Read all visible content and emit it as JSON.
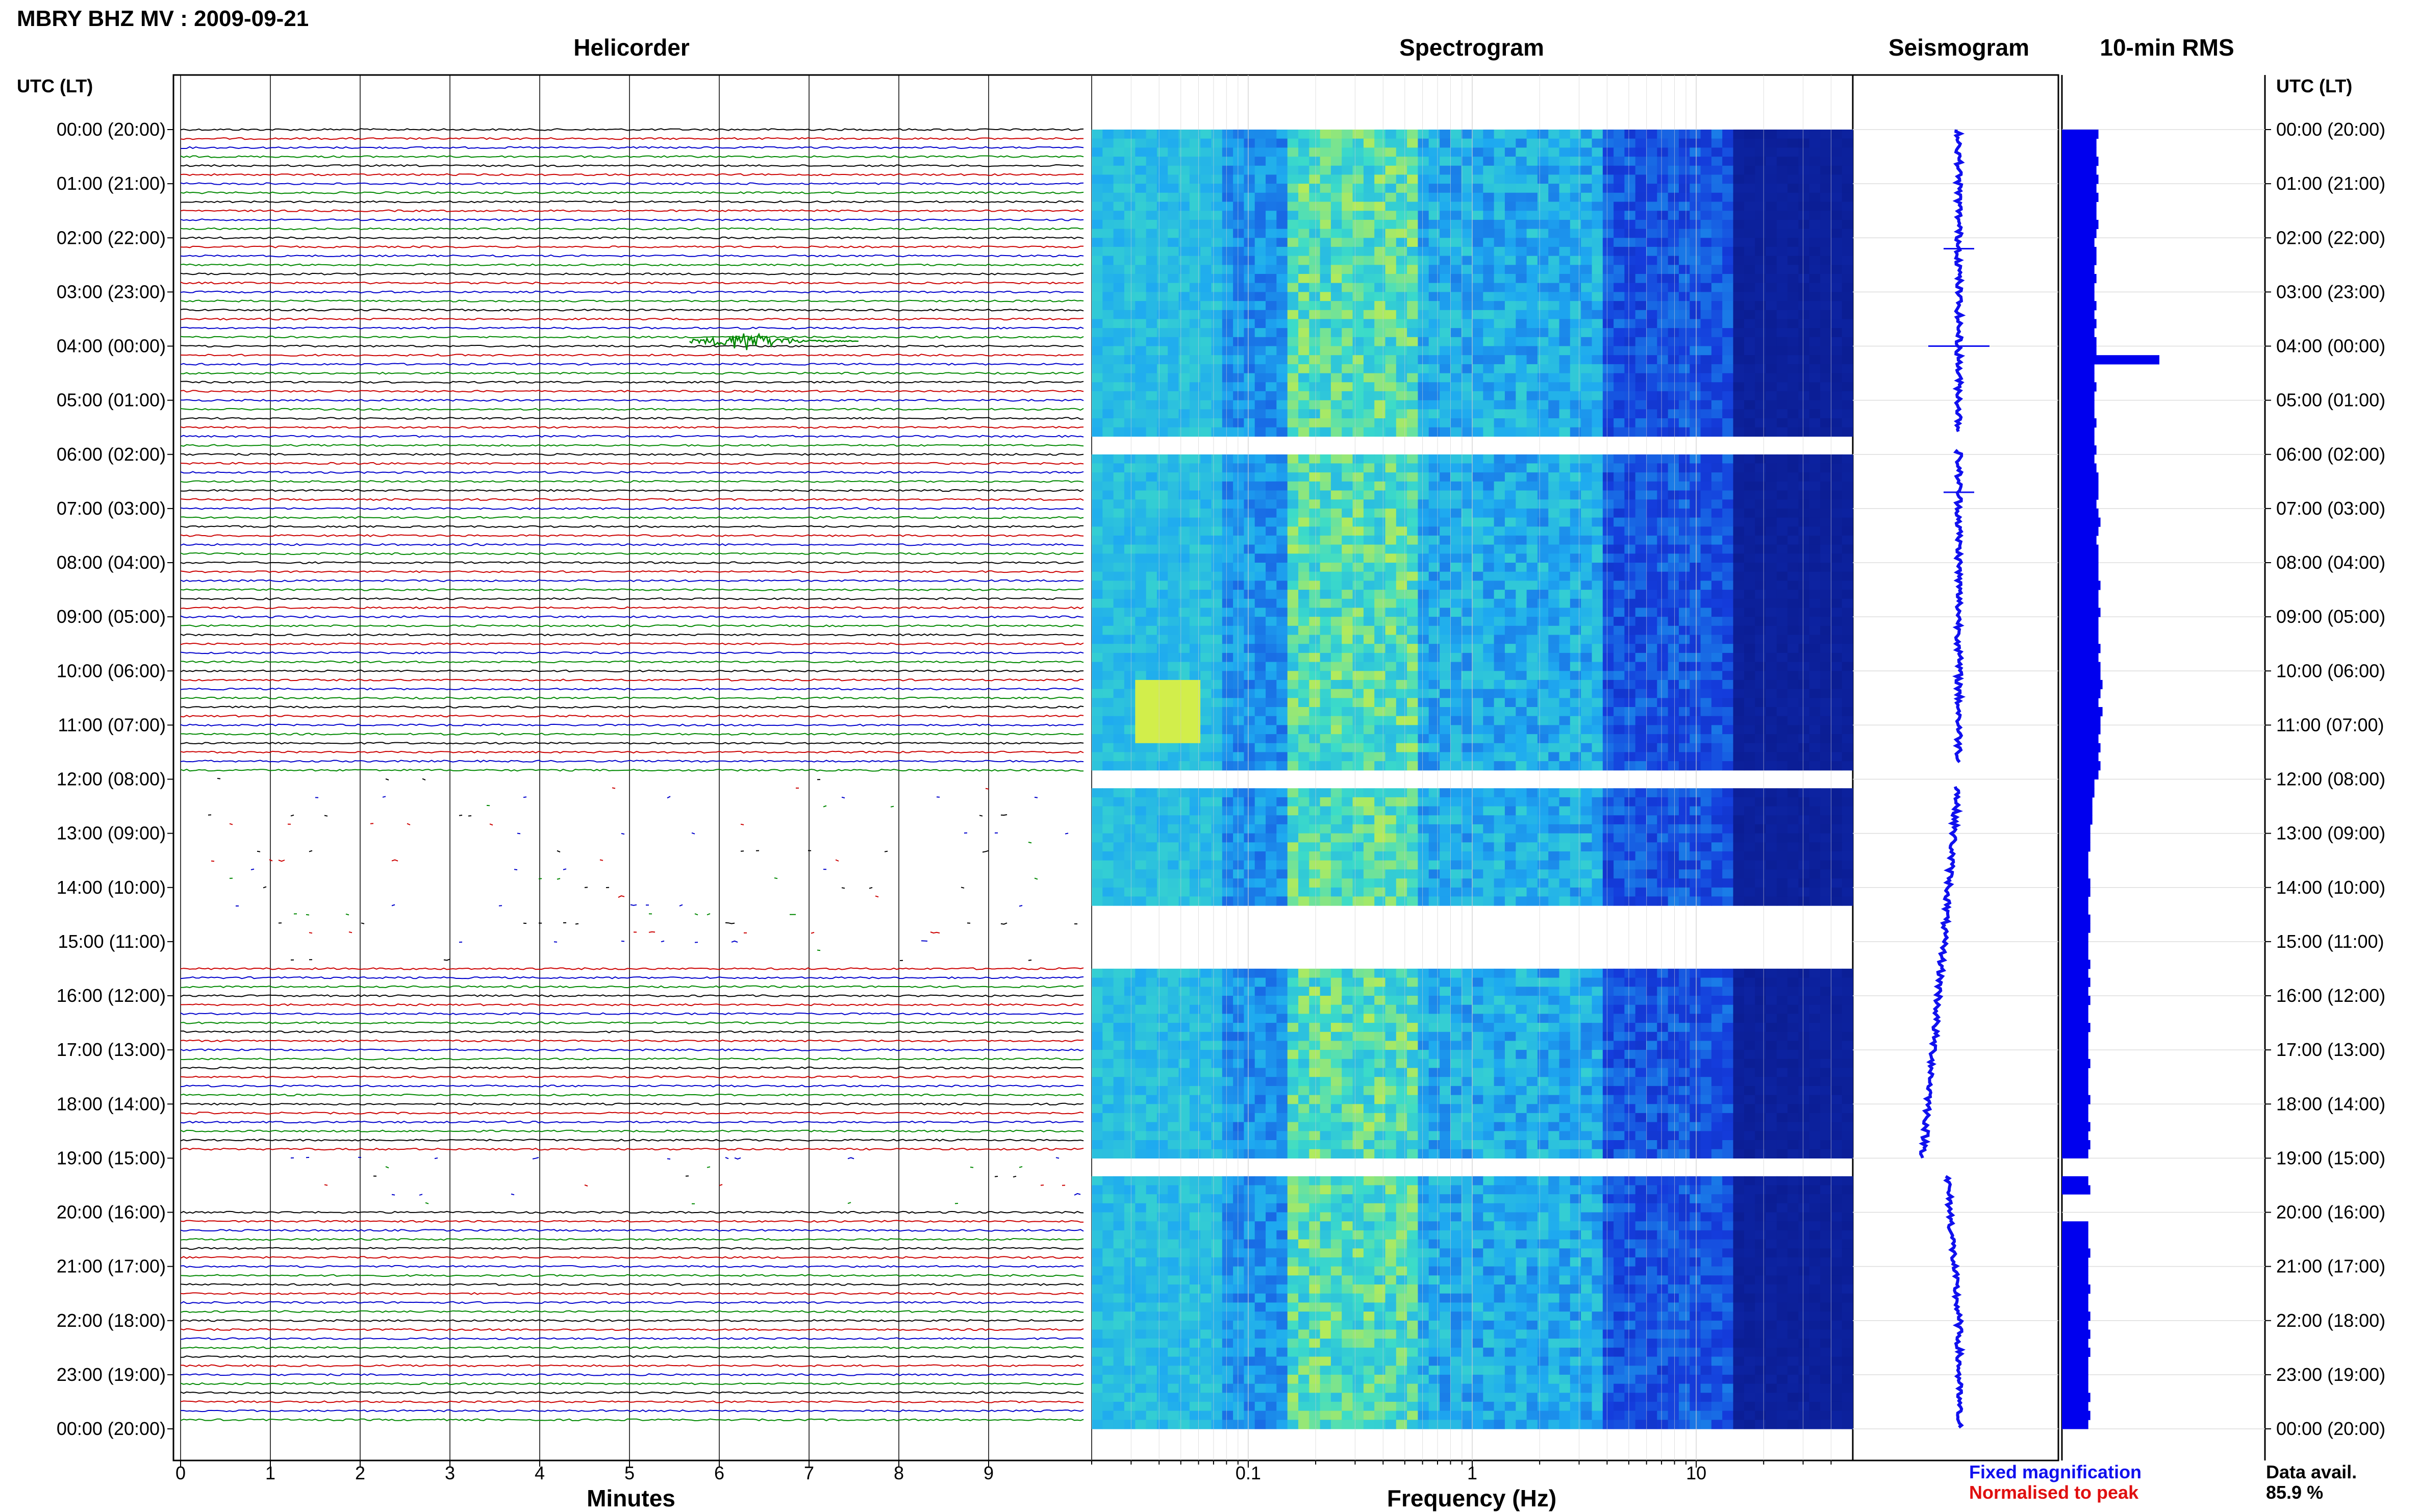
{
  "station_title": "MBRY BHZ MV : 2009-09-21",
  "panels": {
    "helicorder": "Helicorder",
    "spectrogram": "Spectrogram",
    "seismogram": "Seismogram",
    "rms": "10-min RMS"
  },
  "utc_header": "UTC (LT)",
  "x_labels": {
    "minutes": "Minutes",
    "frequency": "Frequency (Hz)"
  },
  "legend": {
    "fixed": "Fixed magnification",
    "normalised": "Normalised to peak"
  },
  "availability": {
    "label": "Data avail.",
    "value": "85.9 %"
  },
  "colors": {
    "trace_cycle": [
      "#000000",
      "#cc0000",
      "#0000cc",
      "#008800"
    ],
    "seismogram": "#1010ee",
    "rms": "#0000ee",
    "spectrogram_low": "#0a1a8c",
    "spectrogram_high": "#f0f040"
  },
  "chart_data": [
    {
      "type": "helicorder",
      "title": "Helicorder",
      "xlabel": "Minutes",
      "xlim": [
        0,
        10
      ],
      "x_ticks": [
        0,
        1,
        2,
        3,
        4,
        5,
        6,
        7,
        8,
        9
      ],
      "y_ticks": [
        "00:00 (20:00)",
        "01:00 (21:00)",
        "02:00 (22:00)",
        "03:00 (23:00)",
        "04:00 (00:00)",
        "05:00 (01:00)",
        "06:00 (02:00)",
        "07:00 (03:00)",
        "08:00 (04:00)",
        "09:00 (05:00)",
        "10:00 (06:00)",
        "11:00 (07:00)",
        "12:00 (08:00)",
        "13:00 (09:00)",
        "14:00 (10:00)",
        "15:00 (11:00)",
        "16:00 (12:00)",
        "17:00 (13:00)",
        "18:00 (14:00)",
        "19:00 (15:00)",
        "20:00 (16:00)",
        "21:00 (17:00)",
        "22:00 (18:00)",
        "23:00 (19:00)",
        "00:00 (20:00)"
      ],
      "lines_per_hour": 6,
      "events": [
        {
          "hour": 4.0,
          "minute": 6.3,
          "label": ""
        }
      ],
      "gap_hours": [
        [
          12.0,
          15.5
        ],
        [
          19.0,
          20.0
        ]
      ]
    },
    {
      "type": "heatmap",
      "title": "Spectrogram",
      "xlabel": "Frequency (Hz)",
      "x_scale": "log",
      "xlim": [
        0.02,
        50
      ],
      "x_ticks": [
        0.1,
        1,
        10
      ],
      "x_tick_labels": [
        "0.1",
        "1",
        "10"
      ],
      "gap_hours": [
        [
          5.6,
          5.9
        ],
        [
          11.7,
          12.1
        ],
        [
          14.3,
          15.5
        ],
        [
          19.0,
          19.2
        ]
      ]
    },
    {
      "type": "line",
      "title": "Seismogram",
      "spike_hours": [
        2.2,
        4.0,
        6.7
      ]
    },
    {
      "type": "bar",
      "title": "10-min RMS",
      "orientation": "horizontal",
      "values_relative": [
        0.18,
        0.17,
        0.17,
        0.18,
        0.17,
        0.18,
        0.17,
        0.18,
        0.17,
        0.17,
        0.18,
        0.17,
        0.16,
        0.17,
        0.17,
        0.16,
        0.17,
        0.16,
        0.16,
        0.17,
        0.16,
        0.17,
        0.16,
        0.17,
        0.17,
        0.48,
        0.16,
        0.16,
        0.17,
        0.16,
        0.16,
        0.16,
        0.17,
        0.16,
        0.16,
        0.17,
        0.16,
        0.17,
        0.18,
        0.18,
        0.18,
        0.17,
        0.18,
        0.19,
        0.18,
        0.17,
        0.18,
        0.18,
        0.18,
        0.18,
        0.19,
        0.18,
        0.18,
        0.19,
        0.18,
        0.18,
        0.18,
        0.19,
        0.18,
        0.19,
        0.19,
        0.2,
        0.19,
        0.18,
        0.2,
        0.19,
        0.19,
        0.18,
        0.19,
        0.18,
        0.19,
        0.18,
        0.16,
        0.16,
        0.15,
        0.15,
        0.15,
        0.14,
        0.14,
        0.14,
        0.13,
        0.13,
        0.13,
        0.14,
        0.14,
        0.13,
        0.13,
        0.14,
        0.14,
        0.13,
        0.13,
        0.13,
        0.14,
        0.13,
        0.14,
        0.13,
        0.14,
        0.13,
        0.13,
        0.14,
        0.13,
        0.13,
        0.13,
        0.14,
        0.13,
        0.13,
        0.13,
        0.14,
        0.13,
        0.13,
        0.14,
        0.13,
        0.14,
        0.13,
        0,
        0,
        0.13,
        0.14,
        0,
        0,
        0,
        0.13,
        0.13,
        0.13,
        0.14,
        0.13,
        0.13,
        0.13,
        0.14,
        0.13,
        0.13,
        0.14,
        0.13,
        0.14,
        0.13,
        0.14,
        0.13,
        0.13,
        0.13,
        0.13,
        0.14,
        0.13,
        0.14,
        0.13
      ]
    }
  ]
}
